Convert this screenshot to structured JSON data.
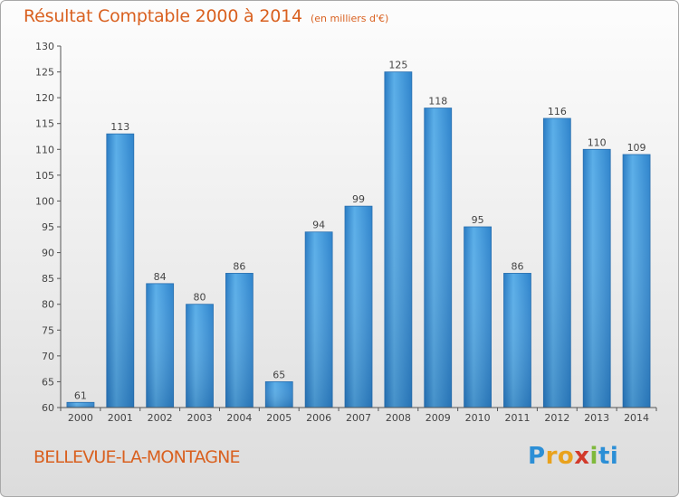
{
  "header": {
    "title": "Résultat Comptable 2000 à 2014",
    "unit": "(en milliers d'€)"
  },
  "footer": {
    "commune": "BELLEVUE-LA-MONTAGNE",
    "logo_text": "Proxiti",
    "logo_letters": [
      "P",
      "r",
      "o",
      "x",
      "i",
      "ti"
    ]
  },
  "colors": {
    "bar": "#3a8fd4",
    "text_accent": "#d9601f",
    "axis": "#555555"
  },
  "chart_data": {
    "type": "bar",
    "title": "Résultat Comptable 2000 à 2014",
    "subtitle": "(en milliers d'€)",
    "xlabel": "",
    "ylabel": "",
    "categories": [
      "2000",
      "2001",
      "2002",
      "2003",
      "2004",
      "2005",
      "2006",
      "2007",
      "2008",
      "2009",
      "2010",
      "2011",
      "2012",
      "2013",
      "2014"
    ],
    "values": [
      61,
      113,
      84,
      80,
      86,
      65,
      94,
      99,
      125,
      118,
      95,
      86,
      116,
      110,
      109
    ],
    "ylim": [
      60,
      130
    ],
    "yticks": [
      60,
      65,
      70,
      75,
      80,
      85,
      90,
      95,
      100,
      105,
      110,
      115,
      120,
      125,
      130
    ],
    "grid": false,
    "legend": "none"
  }
}
